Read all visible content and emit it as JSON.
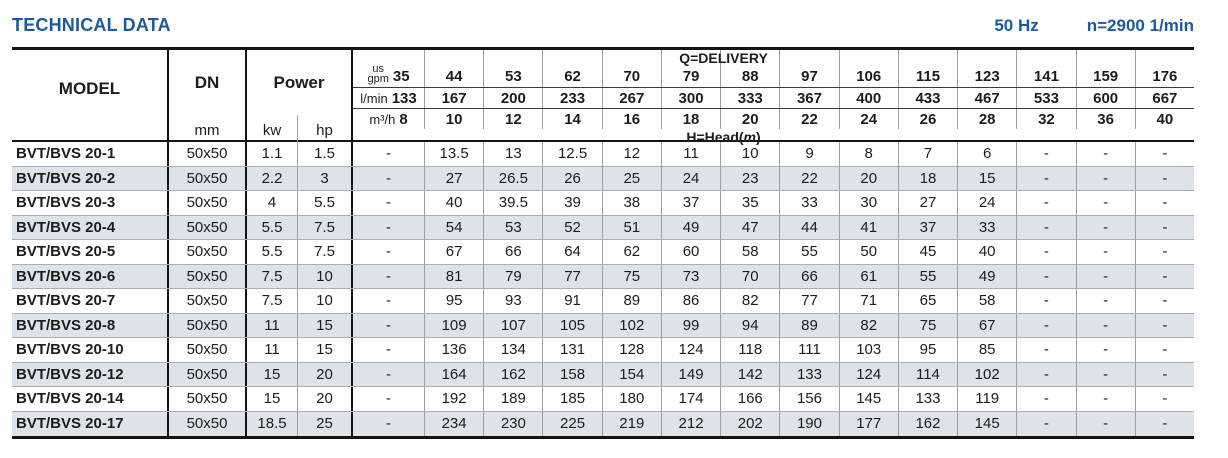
{
  "header": {
    "title": "TECHNICAL DATA",
    "frequency": "50 Hz",
    "speed": "n=2900 1/min"
  },
  "table": {
    "model_header": "MODEL",
    "dn_header": "DN",
    "dn_unit": "mm",
    "power_header": "Power",
    "power_unit_kw": "kw",
    "power_unit_hp": "hp",
    "delivery_label": "Q=DELIVERY",
    "head_label_prefix": "H=Head(",
    "head_label_symbol": "m",
    "head_label_suffix": ")",
    "flow_units": [
      {
        "label_lines": [
          "us",
          "gpm"
        ],
        "values": [
          "35",
          "44",
          "53",
          "62",
          "70",
          "79",
          "88",
          "97",
          "106",
          "115",
          "123",
          "141",
          "159",
          "176"
        ]
      },
      {
        "label_lines": [
          "l/min"
        ],
        "values": [
          "133",
          "167",
          "200",
          "233",
          "267",
          "300",
          "333",
          "367",
          "400",
          "433",
          "467",
          "533",
          "600",
          "667"
        ]
      },
      {
        "label_lines": [
          "m³/h"
        ],
        "values": [
          "8",
          "10",
          "12",
          "14",
          "16",
          "18",
          "20",
          "22",
          "24",
          "26",
          "28",
          "32",
          "36",
          "40"
        ]
      }
    ],
    "rows": [
      {
        "model": "BVT/BVS 20-1",
        "dn": "50x50",
        "kw": "1.1",
        "hp": "1.5",
        "head": [
          "-",
          "13.5",
          "13",
          "12.5",
          "12",
          "11",
          "10",
          "9",
          "8",
          "7",
          "6",
          "-",
          "-",
          "-"
        ]
      },
      {
        "model": "BVT/BVS 20-2",
        "dn": "50x50",
        "kw": "2.2",
        "hp": "3",
        "head": [
          "-",
          "27",
          "26.5",
          "26",
          "25",
          "24",
          "23",
          "22",
          "20",
          "18",
          "15",
          "-",
          "-",
          "-"
        ]
      },
      {
        "model": "BVT/BVS 20-3",
        "dn": "50x50",
        "kw": "4",
        "hp": "5.5",
        "head": [
          "-",
          "40",
          "39.5",
          "39",
          "38",
          "37",
          "35",
          "33",
          "30",
          "27",
          "24",
          "-",
          "-",
          "-"
        ]
      },
      {
        "model": "BVT/BVS 20-4",
        "dn": "50x50",
        "kw": "5.5",
        "hp": "7.5",
        "head": [
          "-",
          "54",
          "53",
          "52",
          "51",
          "49",
          "47",
          "44",
          "41",
          "37",
          "33",
          "-",
          "-",
          "-"
        ]
      },
      {
        "model": "BVT/BVS 20-5",
        "dn": "50x50",
        "kw": "5.5",
        "hp": "7.5",
        "head": [
          "-",
          "67",
          "66",
          "64",
          "62",
          "60",
          "58",
          "55",
          "50",
          "45",
          "40",
          "-",
          "-",
          "-"
        ]
      },
      {
        "model": "BVT/BVS 20-6",
        "dn": "50x50",
        "kw": "7.5",
        "hp": "10",
        "head": [
          "-",
          "81",
          "79",
          "77",
          "75",
          "73",
          "70",
          "66",
          "61",
          "55",
          "49",
          "-",
          "-",
          "-"
        ]
      },
      {
        "model": "BVT/BVS 20-7",
        "dn": "50x50",
        "kw": "7.5",
        "hp": "10",
        "head": [
          "-",
          "95",
          "93",
          "91",
          "89",
          "86",
          "82",
          "77",
          "71",
          "65",
          "58",
          "-",
          "-",
          "-"
        ]
      },
      {
        "model": "BVT/BVS 20-8",
        "dn": "50x50",
        "kw": "11",
        "hp": "15",
        "head": [
          "-",
          "109",
          "107",
          "105",
          "102",
          "99",
          "94",
          "89",
          "82",
          "75",
          "67",
          "-",
          "-",
          "-"
        ]
      },
      {
        "model": "BVT/BVS 20-10",
        "dn": "50x50",
        "kw": "11",
        "hp": "15",
        "head": [
          "-",
          "136",
          "134",
          "131",
          "128",
          "124",
          "118",
          "111",
          "103",
          "95",
          "85",
          "-",
          "-",
          "-"
        ]
      },
      {
        "model": "BVT/BVS 20-12",
        "dn": "50x50",
        "kw": "15",
        "hp": "20",
        "head": [
          "-",
          "164",
          "162",
          "158",
          "154",
          "149",
          "142",
          "133",
          "124",
          "114",
          "102",
          "-",
          "-",
          "-"
        ]
      },
      {
        "model": "BVT/BVS 20-14",
        "dn": "50x50",
        "kw": "15",
        "hp": "20",
        "head": [
          "-",
          "192",
          "189",
          "185",
          "180",
          "174",
          "166",
          "156",
          "145",
          "133",
          "119",
          "-",
          "-",
          "-"
        ]
      },
      {
        "model": "BVT/BVS 20-17",
        "dn": "50x50",
        "kw": "18.5",
        "hp": "25",
        "head": [
          "-",
          "234",
          "230",
          "225",
          "219",
          "212",
          "202",
          "190",
          "177",
          "162",
          "145",
          "-",
          "-",
          "-"
        ]
      }
    ]
  },
  "colors": {
    "accent_blue": "#1a5aa5",
    "row_alt": "#dde3e9",
    "grid_dark": "#141414",
    "grid_light": "#9aa0a6"
  }
}
